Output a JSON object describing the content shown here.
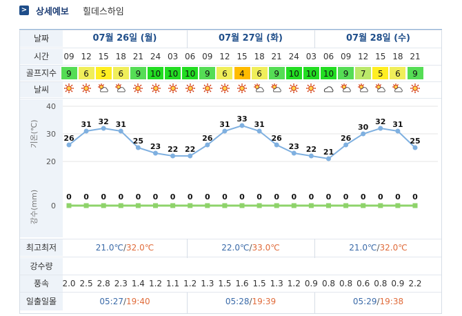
{
  "header": {
    "title": "상세예보",
    "location": "힐데스하임",
    "chevron": ">"
  },
  "labels": {
    "date": "날짜",
    "time": "시간",
    "golf": "골프지수",
    "weather": "날씨",
    "temp_axis": "기온(℃)",
    "rain_axis": "강수(mm)",
    "minmax": "최고최저",
    "precip": "강수량",
    "wind": "풍속",
    "sun": "일출일몰"
  },
  "days": [
    {
      "date": "07월 26일 (월)",
      "min": "21.0℃",
      "max": "32.0℃",
      "sunrise": "05:27",
      "sunset": "19:40"
    },
    {
      "date": "07월 27일 (화)",
      "min": "22.0℃",
      "max": "33.0℃",
      "sunrise": "05:28",
      "sunset": "19:39"
    },
    {
      "date": "07월 28일 (수)",
      "min": "21.0℃",
      "max": "32.0℃",
      "sunrise": "05:29",
      "sunset": "19:38"
    }
  ],
  "hours": [
    "09",
    "12",
    "15",
    "18",
    "21",
    "24",
    "03",
    "06",
    "09",
    "12",
    "15",
    "18",
    "21",
    "24",
    "03",
    "06",
    "09",
    "12",
    "15",
    "18",
    "21"
  ],
  "golf_index": [
    9,
    6,
    5,
    6,
    9,
    10,
    10,
    10,
    9,
    6,
    4,
    6,
    9,
    10,
    10,
    10,
    9,
    7,
    5,
    6,
    9
  ],
  "golf_colors": {
    "10": "#22dd22",
    "9": "#55dd55",
    "7": "#bbe86a",
    "6": "#f0ee5a",
    "5": "#ffee22",
    "4": "#ffbb00"
  },
  "weather_icons": [
    "sun-icon",
    "sun-icon",
    "partly-cloudy-icon",
    "partly-cloudy-icon",
    "sun-icon",
    "sun-icon",
    "sun-icon",
    "sun-icon",
    "sun-icon",
    "sun-icon",
    "sun-icon",
    "partly-cloudy-icon",
    "partly-cloudy-icon",
    "sun-icon",
    "sun-icon",
    "cloud-icon",
    "partly-cloudy-icon",
    "partly-cloudy-icon",
    "partly-cloudy-icon",
    "partly-cloudy-icon",
    "sun-icon"
  ],
  "wind_speed": [
    "2.0",
    "2.5",
    "2.8",
    "2.3",
    "1.4",
    "1.2",
    "1.1",
    "1.2",
    "1.3",
    "1.5",
    "1.6",
    "1.5",
    "1.3",
    "1.2",
    "0.9",
    "0.8",
    "0.8",
    "0.6",
    "0.8",
    "0.9",
    "2.2"
  ],
  "chart_data": [
    {
      "type": "line",
      "x": [
        "09",
        "12",
        "15",
        "18",
        "21",
        "24",
        "03",
        "06",
        "09",
        "12",
        "15",
        "18",
        "21",
        "24",
        "03",
        "06",
        "09",
        "12",
        "15",
        "18",
        "21"
      ],
      "values": [
        26,
        31,
        32,
        31,
        25,
        23,
        22,
        22,
        26,
        31,
        33,
        31,
        26,
        23,
        22,
        21,
        26,
        30,
        32,
        31,
        25
      ],
      "ylabel": "기온(℃)",
      "ylim": [
        20,
        40
      ],
      "yticks": [
        20,
        30,
        40
      ],
      "color": "#7fb0e0"
    },
    {
      "type": "line",
      "x": [
        "09",
        "12",
        "15",
        "18",
        "21",
        "24",
        "03",
        "06",
        "09",
        "12",
        "15",
        "18",
        "21",
        "24",
        "03",
        "06",
        "09",
        "12",
        "15",
        "18",
        "21"
      ],
      "values": [
        0,
        0,
        0,
        0,
        0,
        0,
        0,
        0,
        0,
        0,
        0,
        0,
        0,
        0,
        0,
        0,
        0,
        0,
        0,
        0,
        0
      ],
      "ylabel": "강수(mm)",
      "yticks": [
        0
      ],
      "color": "#8ed36a"
    }
  ]
}
